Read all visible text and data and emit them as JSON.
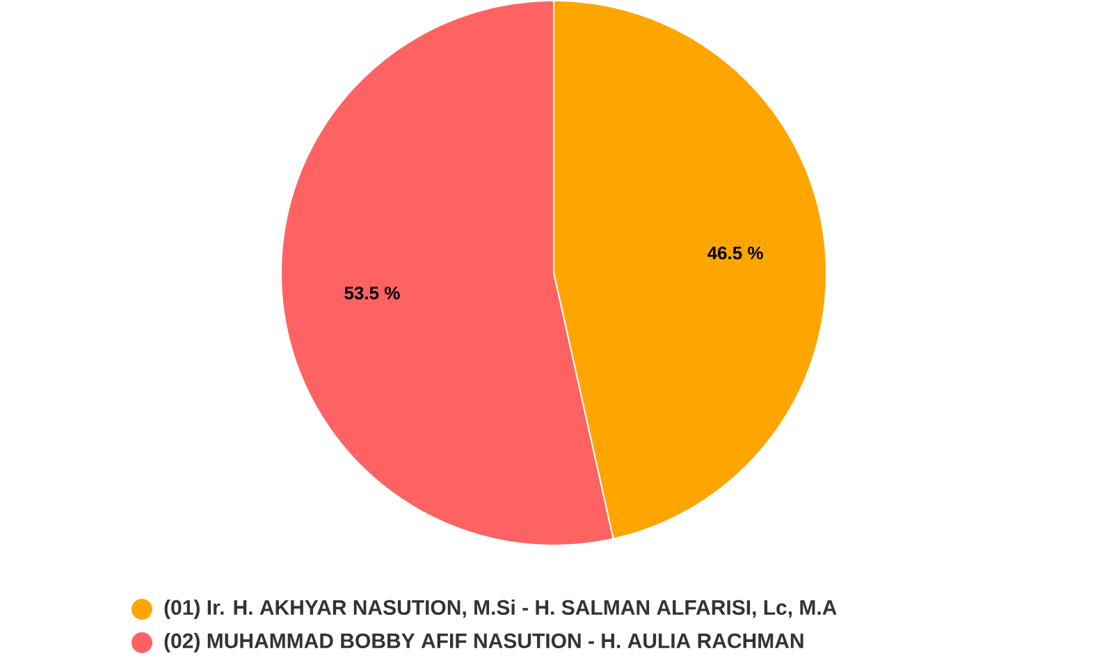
{
  "chart_data": {
    "type": "pie",
    "categories": [
      "(01) Ir. H. AKHYAR NASUTION, M.Si - H. SALMAN ALFARISI, Lc, M.A",
      "(02) MUHAMMAD BOBBY AFIF NASUTION - H. AULIA RACHMAN"
    ],
    "values": [
      46.5,
      53.5
    ],
    "colors": [
      "#ffa500",
      "#ff6262"
    ],
    "value_labels": [
      "46.5 %",
      "53.5 %"
    ],
    "legend": "bottom"
  }
}
